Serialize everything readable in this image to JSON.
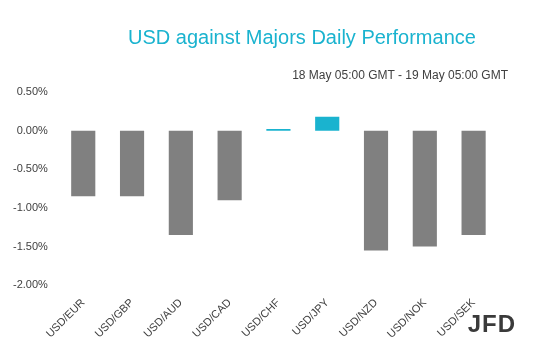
{
  "chart_data": {
    "type": "bar",
    "title": "USD against Majors Daily Performance",
    "subtitle": "18 May 05:00 GMT - 19 May 05:00 GMT",
    "annotations": [
      "JFD"
    ],
    "categories": [
      "USD/EUR",
      "USD/GBP",
      "USD/AUD",
      "USD/CAD",
      "USD/CHF",
      "USD/JPY",
      "USD/NZD",
      "USD/NOK",
      "USD/SEK"
    ],
    "values": [
      -0.85,
      -0.85,
      -1.35,
      -0.9,
      0.02,
      0.18,
      -1.55,
      -1.5,
      -1.35
    ],
    "colors": [
      "#808080",
      "#808080",
      "#808080",
      "#808080",
      "#1ab3cf",
      "#1ab3cf",
      "#808080",
      "#808080",
      "#808080"
    ],
    "ylim": [
      -2.0,
      0.5
    ],
    "yticks": [
      {
        "value": 0.5,
        "label": "0.50%"
      },
      {
        "value": 0.0,
        "label": "0.00%"
      },
      {
        "value": -0.5,
        "label": "-0.50%"
      },
      {
        "value": -1.0,
        "label": "-1.00%"
      },
      {
        "value": -1.5,
        "label": "-1.50%"
      },
      {
        "value": -2.0,
        "label": "-2.00%"
      }
    ],
    "grid": false
  }
}
